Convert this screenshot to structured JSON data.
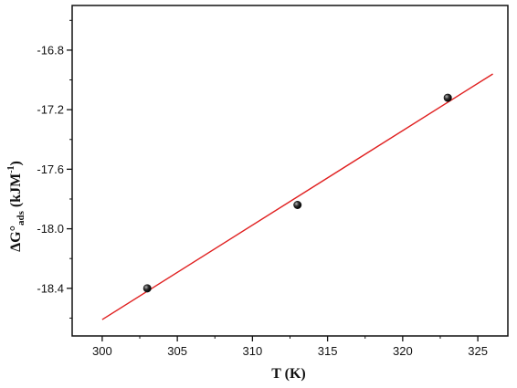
{
  "chart_data": {
    "type": "scatter",
    "title": "",
    "xlabel": "T (K)",
    "ylabel": {
      "main": "ΔG°",
      "sub": "ads",
      "rest": " (kJM",
      "sup": "-1",
      "close": ")"
    },
    "xlim": [
      298,
      327
    ],
    "ylim": [
      -18.72,
      -16.5
    ],
    "x_ticks": [
      300,
      305,
      310,
      315,
      320,
      325
    ],
    "y_ticks": [
      -18.4,
      -18.0,
      -17.6,
      -17.2,
      -16.8
    ],
    "x_tick_labels": [
      "300",
      "305",
      "310",
      "315",
      "320",
      "325"
    ],
    "y_tick_labels": [
      "-18.4",
      "-18.0",
      "-17.6",
      "-17.2",
      "-16.8"
    ],
    "grid": false,
    "series": [
      {
        "kind": "points",
        "x": [
          303,
          313,
          323
        ],
        "y": [
          -18.4,
          -17.84,
          -17.12
        ],
        "color": "#111111"
      },
      {
        "kind": "fit-line",
        "x": [
          300,
          326
        ],
        "y": [
          -18.61,
          -16.96
        ],
        "color": "#e02020"
      }
    ]
  }
}
